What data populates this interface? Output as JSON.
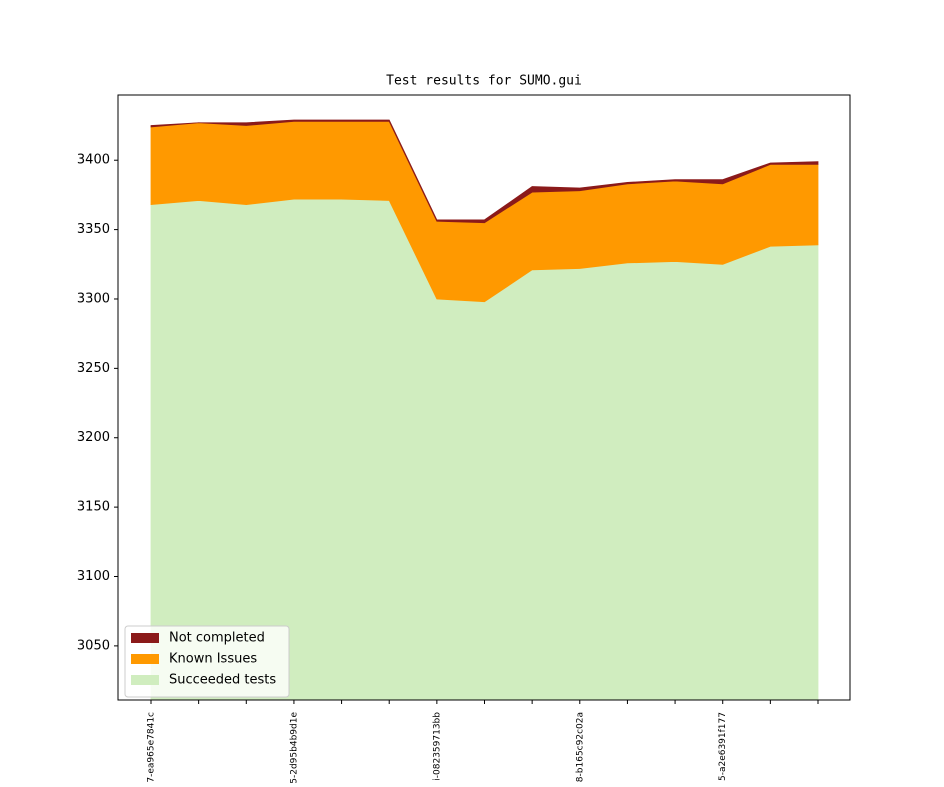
{
  "chart_data": {
    "type": "stacked-area",
    "title": "Test results for SUMO.gui",
    "categories": [
      "7-ea965e7841c",
      null,
      null,
      "5-2d95b4b9d1e",
      null,
      null,
      "i-082359713bb",
      null,
      null,
      "8-b165c92c02a",
      null,
      null,
      "5-a2e6391f177",
      null,
      null
    ],
    "series": [
      {
        "name": "Not completed",
        "color": "#8b1a1a",
        "values": [
          1,
          0,
          2,
          1,
          1,
          1,
          1,
          2,
          4,
          2,
          1,
          1,
          3,
          1,
          2
        ]
      },
      {
        "name": "Known Issues",
        "color": "#ff9900",
        "values": [
          56,
          56,
          57,
          56,
          56,
          57,
          56,
          57,
          56,
          56,
          57,
          58,
          58,
          59,
          58
        ]
      },
      {
        "name": "Succeeded tests",
        "color": "#d0edbf",
        "values": [
          3368,
          3371,
          3368,
          3372,
          3372,
          3371,
          3300,
          3298,
          3321,
          3322,
          3326,
          3327,
          3325,
          3338,
          3339
        ]
      }
    ],
    "ylim": [
      3011,
      3447
    ],
    "yticks": [
      3050,
      3100,
      3150,
      3200,
      3250,
      3300,
      3350,
      3400
    ],
    "grid": false,
    "legend": "lower-left"
  }
}
